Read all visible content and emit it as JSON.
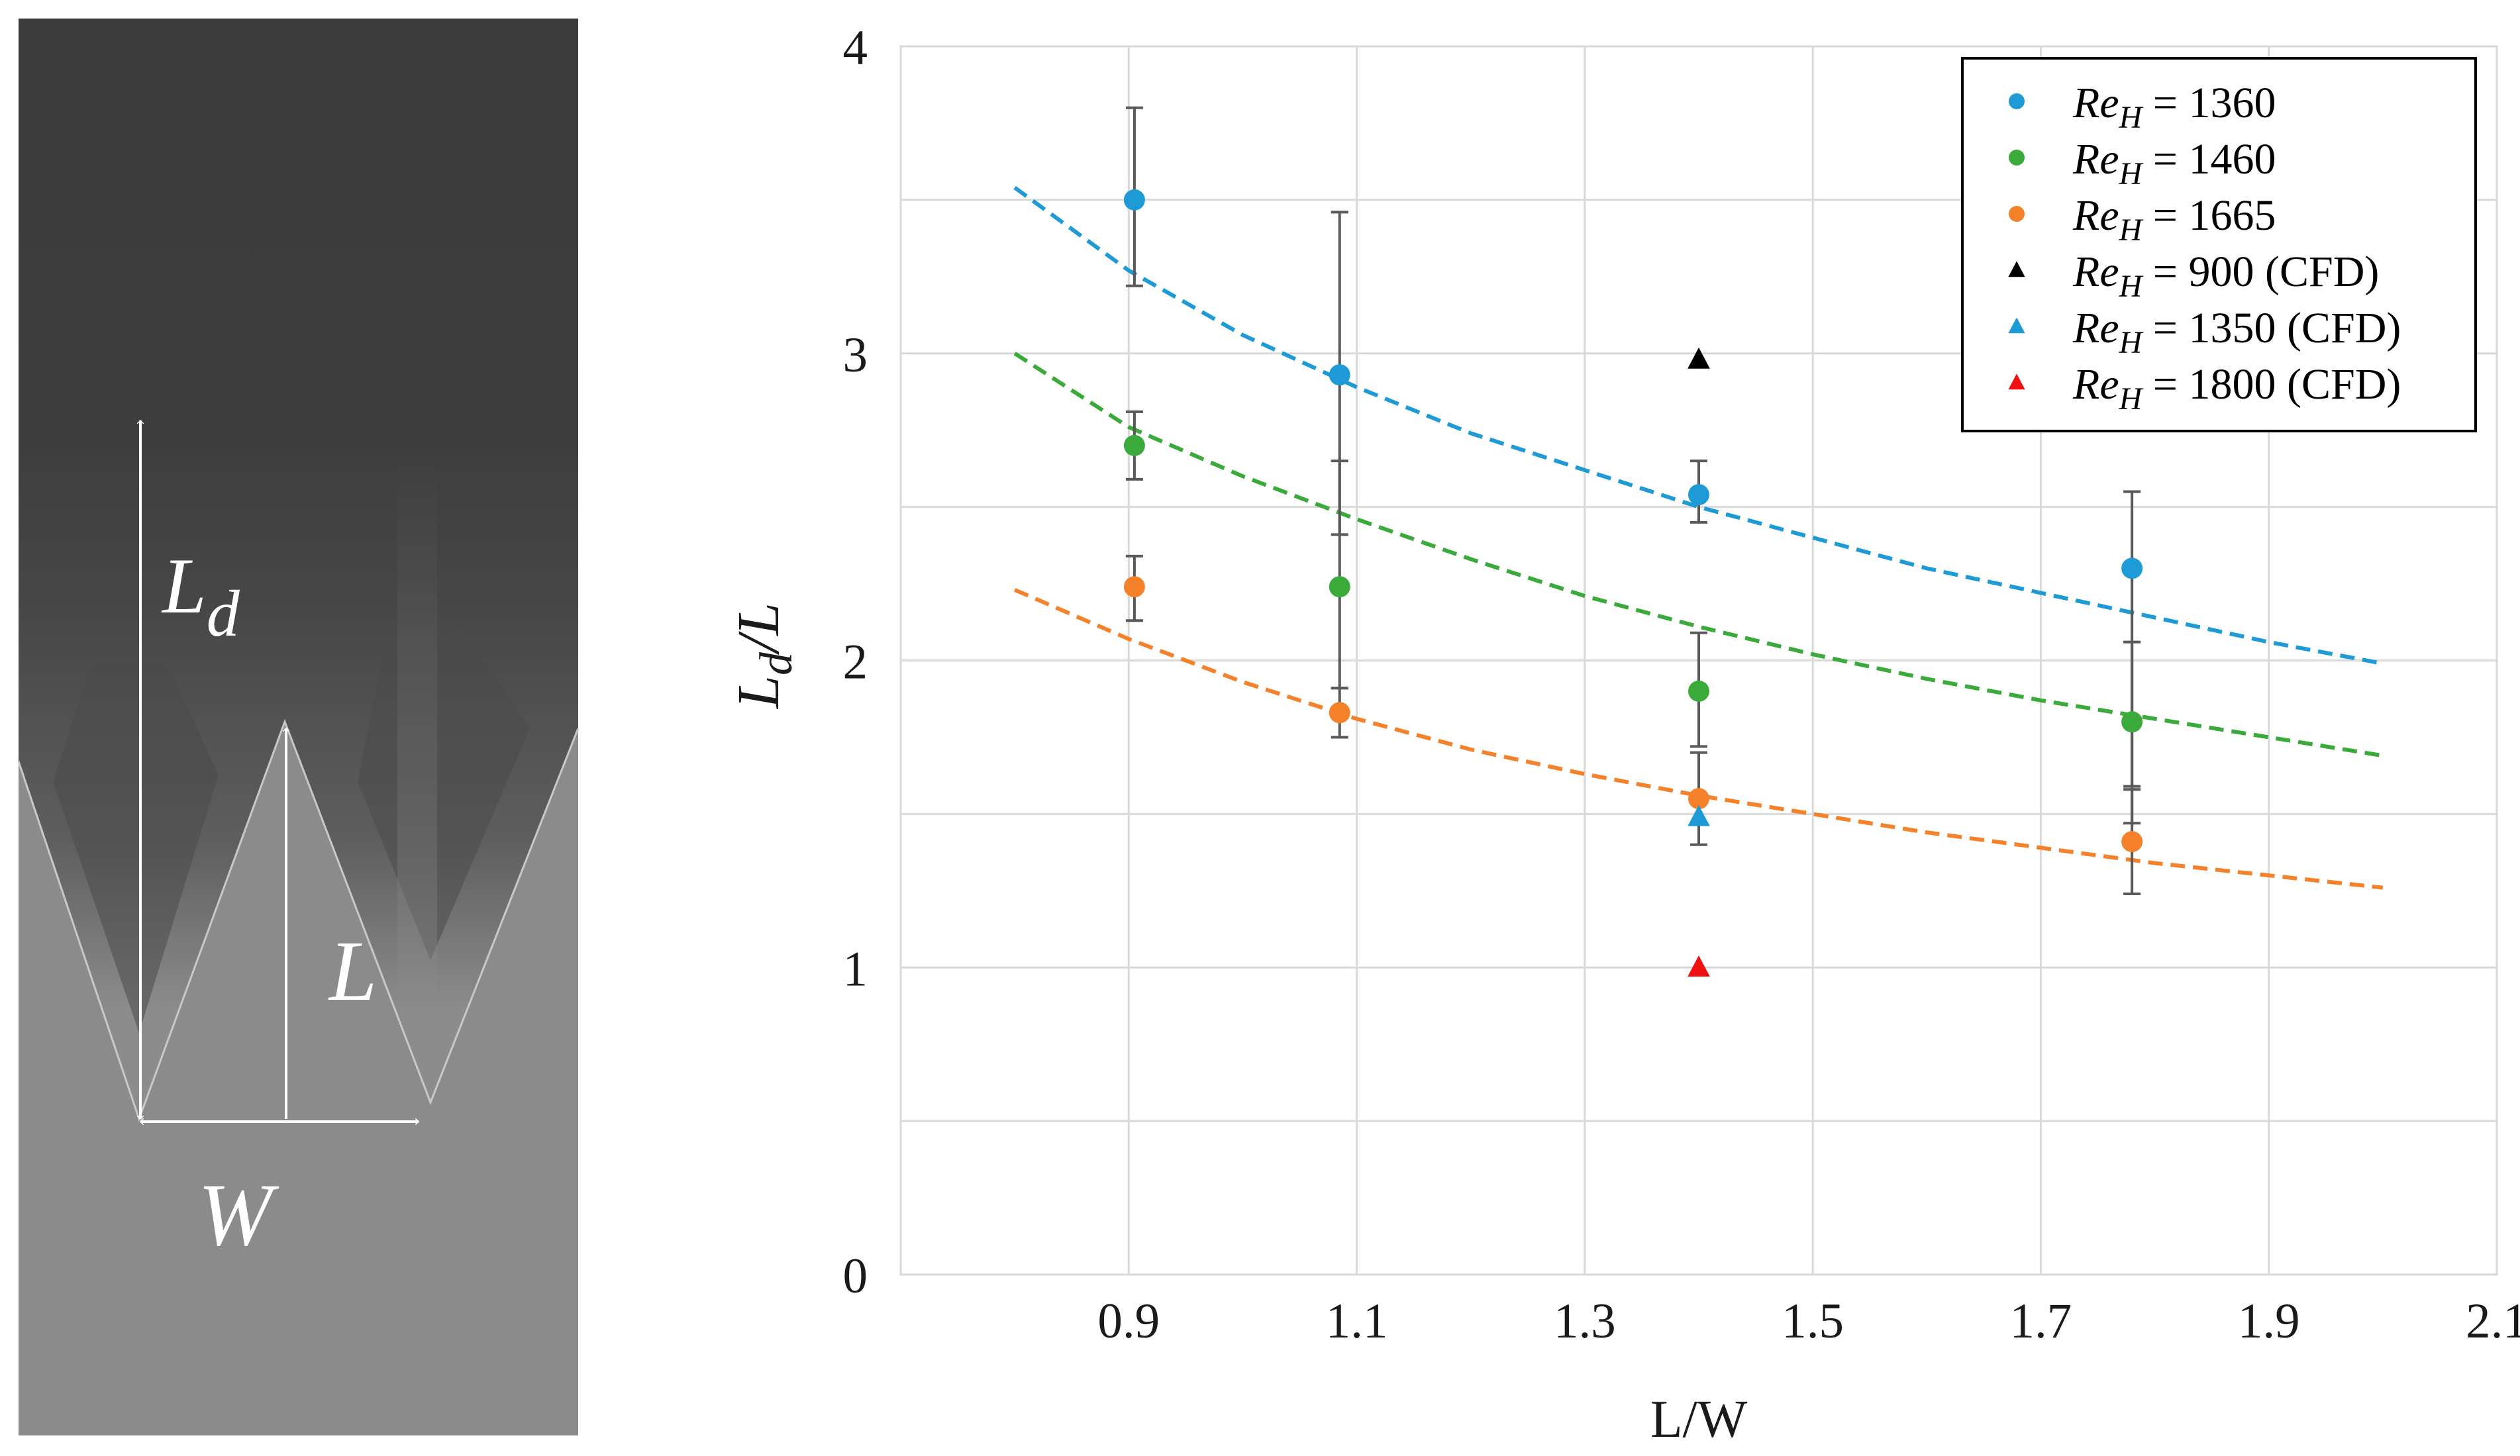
{
  "photo": {
    "labels": {
      "ld": "L",
      "ld_sub": "d",
      "l": "L",
      "w": "W"
    }
  },
  "colors": {
    "blue": "#1e9bd7",
    "green": "#3aab3a",
    "orange": "#f5822a",
    "black": "#000000",
    "red": "#ee1111",
    "grid": "#d9d9d9",
    "errorbar": "#595959"
  },
  "chart_data": {
    "type": "scatter",
    "xlabel": "L/W",
    "ylabel": {
      "base": "L",
      "sub": "d",
      "rest": "/L"
    },
    "xlim": [
      0.7,
      2.1
    ],
    "ylim": [
      0,
      4
    ],
    "xticks": [
      0.9,
      1.1,
      1.3,
      1.5,
      1.7,
      1.9,
      2.1
    ],
    "xtick_labels": [
      "0.9",
      "1.1",
      "1.3",
      "1.5",
      "1.7",
      "1.9",
      "2.1"
    ],
    "yticks": [
      0,
      1,
      2,
      3,
      4
    ],
    "ytick_labels": [
      "0",
      "1",
      "2",
      "3",
      "4"
    ],
    "grid": true,
    "legend_position": "top-right",
    "series": [
      {
        "name": "Re_H = 1360",
        "legend": {
          "sym": "Re",
          "sub": "H",
          "value": " = 1360"
        },
        "marker": "circle",
        "color": "#1e9bd7",
        "x": [
          0.905,
          1.085,
          1.4,
          1.78
        ],
        "y": [
          3.5,
          2.93,
          2.54,
          2.3
        ],
        "err_low": [
          0.28,
          0.52,
          0.09,
          0.83
        ],
        "err_high": [
          0.3,
          0.53,
          0.11,
          0.25
        ],
        "fit": {
          "x": [
            0.8,
            0.9,
            1.0,
            1.1,
            1.2,
            1.3,
            1.4,
            1.5,
            1.6,
            1.7,
            1.8,
            1.9,
            2.0
          ],
          "y": [
            3.54,
            3.27,
            3.06,
            2.89,
            2.74,
            2.62,
            2.5,
            2.4,
            2.3,
            2.22,
            2.14,
            2.06,
            1.99
          ]
        }
      },
      {
        "name": "Re_H = 1460",
        "legend": {
          "sym": "Re",
          "sub": "H",
          "value": " = 1460"
        },
        "marker": "circle",
        "color": "#3aab3a",
        "x": [
          0.905,
          1.085,
          1.4,
          1.78
        ],
        "y": [
          2.7,
          2.24,
          1.9,
          1.8
        ],
        "err_low": [
          0.11,
          0.33,
          0.18,
          0.22
        ],
        "err_high": [
          0.11,
          0.41,
          0.19,
          0.26
        ],
        "fit": {
          "x": [
            0.8,
            0.9,
            1.0,
            1.1,
            1.2,
            1.3,
            1.4,
            1.5,
            1.6,
            1.7,
            1.8,
            1.9,
            2.0
          ],
          "y": [
            3.0,
            2.76,
            2.6,
            2.46,
            2.33,
            2.21,
            2.11,
            2.02,
            1.94,
            1.87,
            1.81,
            1.75,
            1.69
          ]
        }
      },
      {
        "name": "Re_H = 1665",
        "legend": {
          "sym": "Re",
          "sub": "H",
          "value": " = 1665"
        },
        "marker": "circle",
        "color": "#f5822a",
        "x": [
          0.905,
          1.085,
          1.4,
          1.78
        ],
        "y": [
          2.24,
          1.83,
          1.55,
          1.41
        ],
        "err_low": [
          0.11,
          0.08,
          0.15,
          0.17
        ],
        "err_high": [
          0.1,
          0.08,
          0.15,
          0.18
        ],
        "fit": {
          "x": [
            0.8,
            0.9,
            1.0,
            1.1,
            1.2,
            1.3,
            1.4,
            1.5,
            1.6,
            1.7,
            1.8,
            1.9,
            2.0
          ],
          "y": [
            2.23,
            2.07,
            1.93,
            1.81,
            1.71,
            1.63,
            1.56,
            1.5,
            1.44,
            1.39,
            1.34,
            1.3,
            1.26
          ]
        }
      },
      {
        "name": "Re_H = 900 (CFD)",
        "legend": {
          "sym": "Re",
          "sub": "H",
          "value": " = 900 (CFD)"
        },
        "marker": "triangle",
        "color": "#000000",
        "x": [
          1.4
        ],
        "y": [
          2.98
        ]
      },
      {
        "name": "Re_H = 1350 (CFD)",
        "legend": {
          "sym": "Re",
          "sub": "H",
          "value": " = 1350 (CFD)"
        },
        "marker": "triangle",
        "color": "#1e9bd7",
        "x": [
          1.4
        ],
        "y": [
          1.49
        ]
      },
      {
        "name": "Re_H = 1800 (CFD)",
        "legend": {
          "sym": "Re",
          "sub": "H",
          "value": " = 1800 (CFD)"
        },
        "marker": "triangle",
        "color": "#ee1111",
        "x": [
          1.4
        ],
        "y": [
          1.0
        ]
      }
    ]
  }
}
